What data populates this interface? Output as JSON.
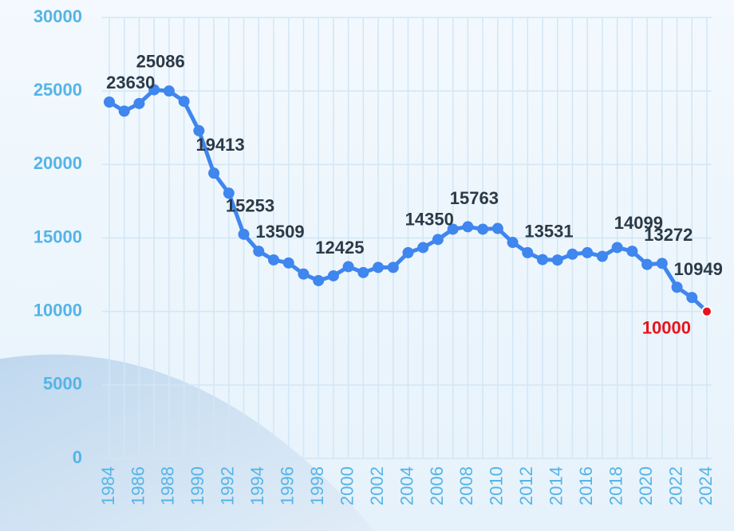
{
  "chart_data": {
    "type": "line",
    "x": [
      1984,
      1985,
      1986,
      1987,
      1988,
      1989,
      1990,
      1991,
      1992,
      1993,
      1994,
      1995,
      1996,
      1997,
      1998,
      1999,
      2000,
      2001,
      2002,
      2003,
      2004,
      2005,
      2006,
      2007,
      2008,
      2009,
      2010,
      2011,
      2012,
      2013,
      2014,
      2015,
      2016,
      2017,
      2018,
      2019,
      2020,
      2021,
      2022,
      2023,
      2024
    ],
    "series": [
      {
        "color": "#3f86ee",
        "highlight_color": "#e8141c",
        "values": [
          24250,
          23630,
          24150,
          25086,
          25000,
          24300,
          22300,
          19413,
          18050,
          15253,
          14100,
          13509,
          13300,
          12550,
          12100,
          12425,
          13050,
          12650,
          13000,
          13000,
          14000,
          14350,
          14900,
          15600,
          15763,
          15600,
          15650,
          14700,
          14000,
          13531,
          13500,
          13900,
          14000,
          13750,
          14350,
          14099,
          13200,
          13272,
          11650,
          10949,
          10000
        ],
        "value_labels": [
          null,
          "23630",
          null,
          "25086",
          null,
          null,
          null,
          "19413",
          null,
          "15253",
          null,
          "13509",
          null,
          null,
          null,
          "12425",
          null,
          null,
          null,
          null,
          null,
          "14350",
          null,
          null,
          "15763",
          null,
          null,
          null,
          null,
          "13531",
          null,
          null,
          null,
          null,
          null,
          "14099",
          null,
          "13272",
          null,
          "10949",
          "10000"
        ]
      }
    ],
    "xlim": [
      1984,
      2024
    ],
    "xticks": [
      1984,
      1986,
      1988,
      1990,
      1992,
      1994,
      1996,
      1998,
      2000,
      2002,
      2004,
      2006,
      2008,
      2010,
      2012,
      2014,
      2016,
      2018,
      2020,
      2022,
      2024
    ],
    "ylim": [
      0,
      30000
    ],
    "yticks": [
      0,
      5000,
      10000,
      15000,
      20000,
      25000,
      30000
    ],
    "grid": true
  }
}
